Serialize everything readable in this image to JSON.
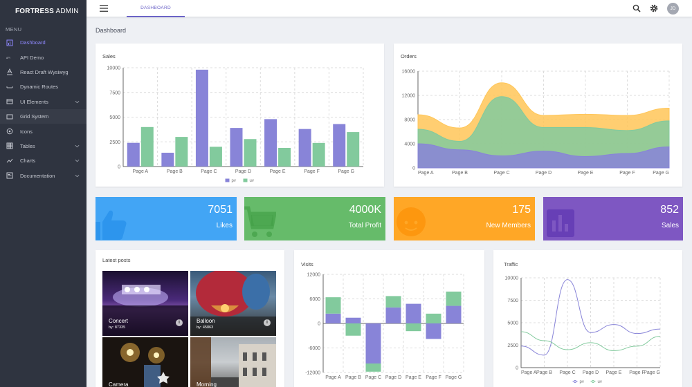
{
  "brand": {
    "bold": "FORTRESS",
    "rest": " ADMIN"
  },
  "sidebar": {
    "menu_head": "MENU",
    "items": [
      {
        "label": "Dashboard",
        "icon": "bar-chart-icon"
      },
      {
        "label": "API Demo",
        "icon": "api-icon"
      },
      {
        "label": "React Draft Wysiwyg",
        "icon": "text-format-icon"
      },
      {
        "label": "Dynamic Routes",
        "icon": "route-icon"
      },
      {
        "label": "UI Elements",
        "icon": "widgets-icon"
      },
      {
        "label": "Grid System",
        "icon": "grid-icon"
      },
      {
        "label": "Icons",
        "icon": "circle-icon"
      },
      {
        "label": "Tables",
        "icon": "table-icon"
      },
      {
        "label": "Charts",
        "icon": "line-chart-icon"
      },
      {
        "label": "Documentation",
        "icon": "book-icon"
      }
    ]
  },
  "topbar": {
    "tab": "DASHBOARD",
    "avatar": "JD"
  },
  "page": {
    "title": "Dashboard"
  },
  "colors": {
    "pv": "#8884d8",
    "uv": "#82ca9d",
    "orange": "#ffc658",
    "likes": "#42a5f5",
    "profit": "#66bb6a",
    "members": "#ffa726",
    "sales": "#7e57c2"
  },
  "stats": [
    {
      "value": "7051",
      "label": "Likes"
    },
    {
      "value": "4000K",
      "label": "Total Profit"
    },
    {
      "value": "175",
      "label": "New Members"
    },
    {
      "value": "852",
      "label": "Sales"
    }
  ],
  "posts": {
    "title": "Latest posts",
    "items": [
      {
        "title": "Concert",
        "by": "by: 87335"
      },
      {
        "title": "Balloon",
        "by": "by: 45863"
      },
      {
        "title": "Camera",
        "by": ""
      },
      {
        "title": "Morning",
        "by": ""
      }
    ]
  },
  "chart_data": [
    {
      "type": "bar",
      "title": "Sales",
      "categories": [
        "Page A",
        "Page B",
        "Page C",
        "Page D",
        "Page E",
        "Page F",
        "Page G"
      ],
      "series": [
        {
          "name": "pv",
          "values": [
            2400,
            1398,
            9800,
            3908,
            4800,
            3800,
            4300
          ]
        },
        {
          "name": "uv",
          "values": [
            4000,
            3000,
            2000,
            2780,
            1890,
            2390,
            3490
          ]
        }
      ],
      "yticks": [
        0,
        2500,
        5000,
        7500,
        10000
      ],
      "ylim": [
        0,
        10000
      ],
      "legend": "bottom"
    },
    {
      "type": "area",
      "title": "Orders",
      "categories": [
        "Page A",
        "Page B",
        "Page C",
        "Page D",
        "Page E",
        "Page F",
        "Page G"
      ],
      "stacked": true,
      "series": [
        {
          "values": [
            4000,
            3000,
            2000,
            2780,
            1890,
            2390,
            3490
          ]
        },
        {
          "values": [
            2400,
            1398,
            9800,
            3908,
            4800,
            3800,
            4300
          ]
        },
        {
          "values": [
            2400,
            2210,
            2290,
            2000,
            2181,
            2500,
            2100
          ]
        }
      ],
      "yticks": [
        0,
        4000,
        8000,
        12000,
        16000
      ],
      "ylim": [
        0,
        16000
      ]
    },
    {
      "type": "bar",
      "title": "Visits",
      "stacked": true,
      "categories": [
        "Page A",
        "Page B",
        "Page C",
        "Page D",
        "Page E",
        "Page F",
        "Page G"
      ],
      "series": [
        {
          "name": "pv",
          "values": [
            2400,
            1398,
            -9800,
            3908,
            4800,
            -3800,
            4300
          ]
        },
        {
          "name": "uv",
          "values": [
            4000,
            -3000,
            -2000,
            2780,
            -1890,
            2390,
            3490
          ]
        }
      ],
      "yticks": [
        -12000,
        -6000,
        0,
        6000,
        12000
      ],
      "ylim": [
        -12000,
        12000
      ]
    },
    {
      "type": "line",
      "title": "Traffic",
      "categories": [
        "Page A",
        "Page B",
        "Page C",
        "Page D",
        "Page E",
        "Page F",
        "Page G"
      ],
      "series": [
        {
          "name": "pv",
          "values": [
            2400,
            1398,
            9800,
            3908,
            4800,
            3800,
            4300
          ]
        },
        {
          "name": "uv",
          "values": [
            4000,
            3000,
            2000,
            2780,
            1890,
            2390,
            3490
          ]
        }
      ],
      "yticks": [
        0,
        2500,
        5000,
        7500,
        10000
      ],
      "ylim": [
        0,
        10000
      ],
      "legend": "bottom"
    }
  ]
}
